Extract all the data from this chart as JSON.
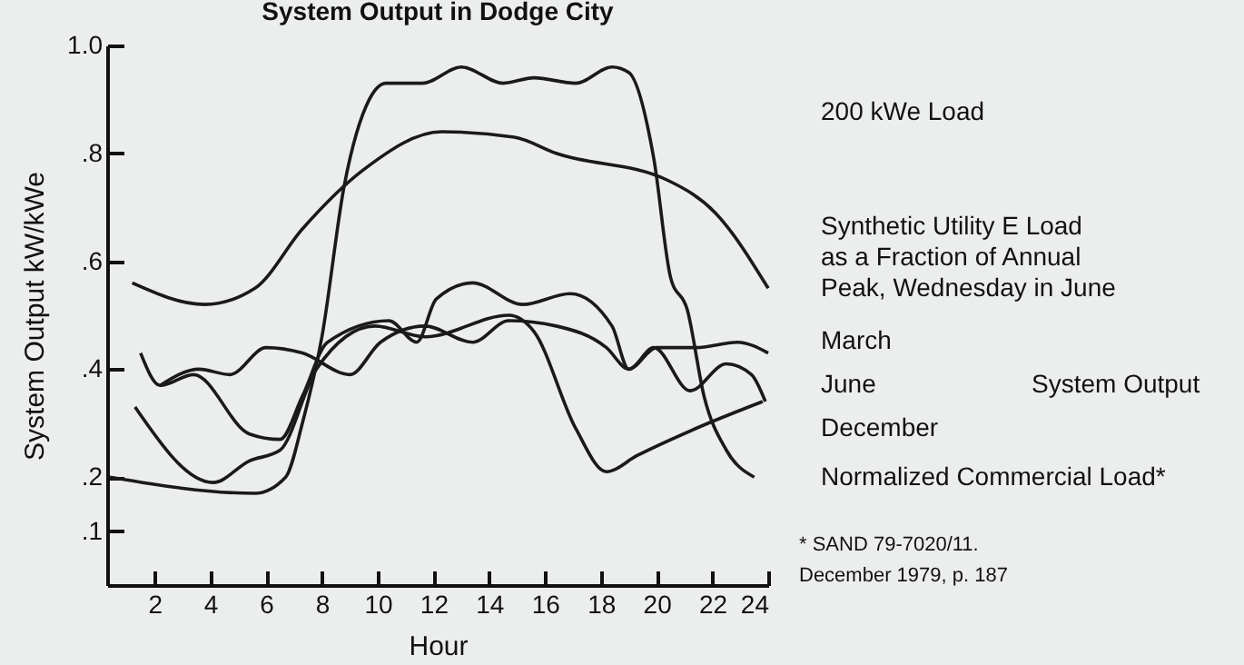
{
  "chart_data": {
    "type": "line",
    "title": "System Output in Dodge City",
    "xlabel": "Hour",
    "ylabel": "System Output kW/kWe",
    "xlim": [
      0.3,
      24
    ],
    "xticks": [
      2,
      4,
      6,
      8,
      10,
      12,
      14,
      16,
      18,
      20,
      22,
      24
    ],
    "ylim": [
      0,
      1.0
    ],
    "yticks": [
      {
        "value": 1.0,
        "label": "1.0"
      },
      {
        "value": 0.8,
        "label": ".8"
      },
      {
        "value": 0.6,
        "label": ".6"
      },
      {
        "value": 0.4,
        "label": ".4"
      },
      {
        "value": 0.2,
        "label": ".2"
      },
      {
        "value": 0.1,
        "label": ".1"
      }
    ],
    "grid": false,
    "legend": false,
    "marker": "none",
    "line_style": "solid",
    "series": [
      {
        "name": "Normalized Commercial Load*",
        "color": "#1a1a1a",
        "x": [
          0.4,
          5.6,
          6.7,
          7.3,
          8,
          8.8,
          9.7,
          10.3,
          11.6,
          13,
          14.5,
          15.6,
          17.1,
          18.4,
          19,
          19.9,
          20.5,
          21.1,
          21.7,
          22.5,
          23.5
        ],
        "values": [
          0.2,
          0.17,
          0.2,
          0.3,
          0.46,
          0.74,
          0.9,
          0.93,
          0.93,
          0.96,
          0.93,
          0.94,
          0.93,
          0.96,
          0.95,
          0.79,
          0.57,
          0.51,
          0.35,
          0.25,
          0.2
        ]
      },
      {
        "name": "Synthetic Utility E Load\nas a Fraction of Annual\nPeak, Wednesday in June",
        "color": "#1a1a1a",
        "x": [
          1.2,
          3.8,
          5.6,
          7.3,
          9.5,
          12.3,
          14.9,
          16.4,
          20.4,
          22.1,
          24
        ],
        "values": [
          0.56,
          0.52,
          0.55,
          0.66,
          0.77,
          0.84,
          0.83,
          0.8,
          0.75,
          0.69,
          0.55
        ]
      },
      {
        "name": "March",
        "color": "#1a1a1a",
        "x": [
          2.2,
          3.6,
          4.7,
          6,
          7.3,
          9,
          10.1,
          11.7,
          13.4,
          14.7,
          16.4,
          18.2,
          19,
          20,
          21.4,
          22.9,
          24
        ],
        "values": [
          0.37,
          0.4,
          0.39,
          0.44,
          0.43,
          0.39,
          0.45,
          0.48,
          0.45,
          0.49,
          0.48,
          0.44,
          0.4,
          0.44,
          0.44,
          0.45,
          0.43
        ]
      },
      {
        "name": "June",
        "color": "#1a1a1a",
        "x": [
          1.5,
          2.2,
          3.4,
          5.4,
          6.5,
          7.3,
          8.2,
          10.4,
          11.4,
          12.1,
          13.4,
          15.2,
          16.9,
          18.4,
          19,
          19.9,
          21.2,
          22.5,
          23.4,
          23.9
        ],
        "values": [
          0.43,
          0.37,
          0.39,
          0.28,
          0.27,
          0.35,
          0.45,
          0.49,
          0.45,
          0.53,
          0.56,
          0.52,
          0.54,
          0.48,
          0.4,
          0.44,
          0.36,
          0.41,
          0.39,
          0.34
        ]
      },
      {
        "name": "December",
        "color": "#1a1a1a",
        "x": [
          1.3,
          4.1,
          5.4,
          6.5,
          7.8,
          9.9,
          11.7,
          14.7,
          15.6,
          17.1,
          18.2,
          19.3,
          21.4,
          23.8
        ],
        "values": [
          0.33,
          0.19,
          0.23,
          0.25,
          0.4,
          0.48,
          0.46,
          0.5,
          0.47,
          0.29,
          0.21,
          0.24,
          0.29,
          0.34
        ]
      }
    ],
    "annotations": [
      "200 kWe Load",
      "System Output",
      "* SAND 79-7020/11.\nDecember 1979, p. 187"
    ]
  }
}
